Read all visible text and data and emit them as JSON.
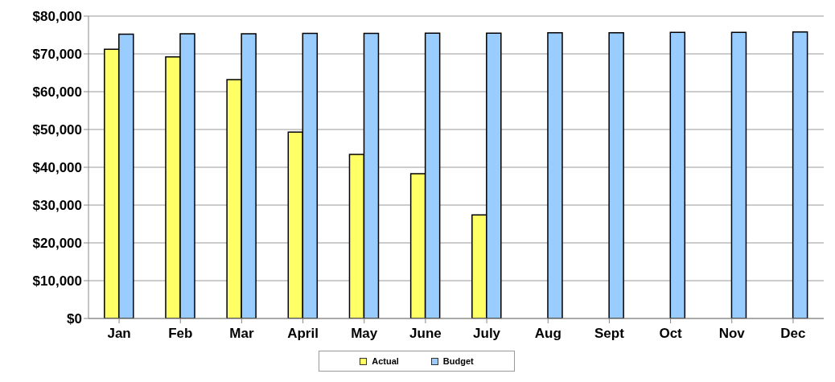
{
  "chart_data": {
    "type": "bar",
    "categories": [
      "Jan",
      "Feb",
      "Mar",
      "April",
      "May",
      "June",
      "July",
      "Aug",
      "Sept",
      "Oct",
      "Nov",
      "Dec"
    ],
    "series": [
      {
        "name": "Actual",
        "color": "#ffff66",
        "values": [
          71200,
          69200,
          63200,
          49300,
          43400,
          38300,
          27400,
          null,
          null,
          null,
          null,
          null
        ]
      },
      {
        "name": "Budget",
        "color": "#99ccff",
        "values": [
          75200,
          75300,
          75300,
          75400,
          75400,
          75500,
          75500,
          75600,
          75600,
          75700,
          75700,
          75800
        ]
      }
    ],
    "ylim": [
      0,
      80000
    ],
    "yticks": [
      {
        "value": 0,
        "label": "$0"
      },
      {
        "value": 10000,
        "label": "$10,000"
      },
      {
        "value": 20000,
        "label": "$20,000"
      },
      {
        "value": 30000,
        "label": "$30,000"
      },
      {
        "value": 40000,
        "label": "$40,000"
      },
      {
        "value": 50000,
        "label": "$50,000"
      },
      {
        "value": 60000,
        "label": "$60,000"
      },
      {
        "value": 70000,
        "label": "$70,000"
      },
      {
        "value": 80000,
        "label": "$80,000"
      }
    ],
    "grid": "y",
    "legend": "bottom"
  }
}
